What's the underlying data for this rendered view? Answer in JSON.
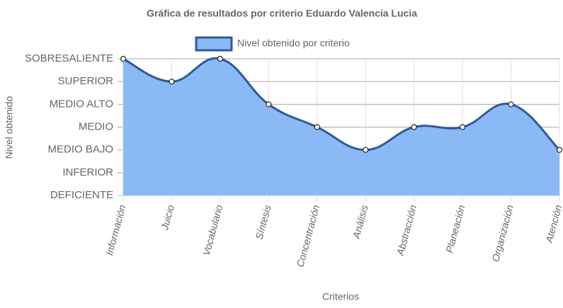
{
  "chart_data": {
    "type": "line",
    "title": "Gráfica de resultados por criterio Eduardo Valencia Lucia",
    "x_label": "Criterios",
    "y_label": "Nivel obtenido",
    "categories": [
      "Información",
      "Juicio",
      "Vocabulario",
      "Síntesis",
      "Concentración",
      "Análisis",
      "Abstracción",
      "Planeación",
      "Organización",
      "Atención"
    ],
    "series": [
      {
        "name": "Nivel obtenido por criterio",
        "color": "#2e5a94",
        "fill": "#8ab9f6",
        "values": [
          6,
          5,
          6,
          4,
          3,
          2,
          3,
          3,
          4,
          2
        ]
      }
    ],
    "ylim": [
      0,
      6
    ],
    "yticks": [
      {
        "value": 0,
        "label": "DEFICIENTE"
      },
      {
        "value": 1,
        "label": "INFERIOR"
      },
      {
        "value": 2,
        "label": "MEDIO BAJO"
      },
      {
        "value": 3,
        "label": "MEDIO"
      },
      {
        "value": 4,
        "label": "MEDIO ALTO"
      },
      {
        "value": 5,
        "label": "SUPERIOR"
      },
      {
        "value": 6,
        "label": "SOBRESALIENTE"
      }
    ],
    "grid": true,
    "legend": "top"
  }
}
